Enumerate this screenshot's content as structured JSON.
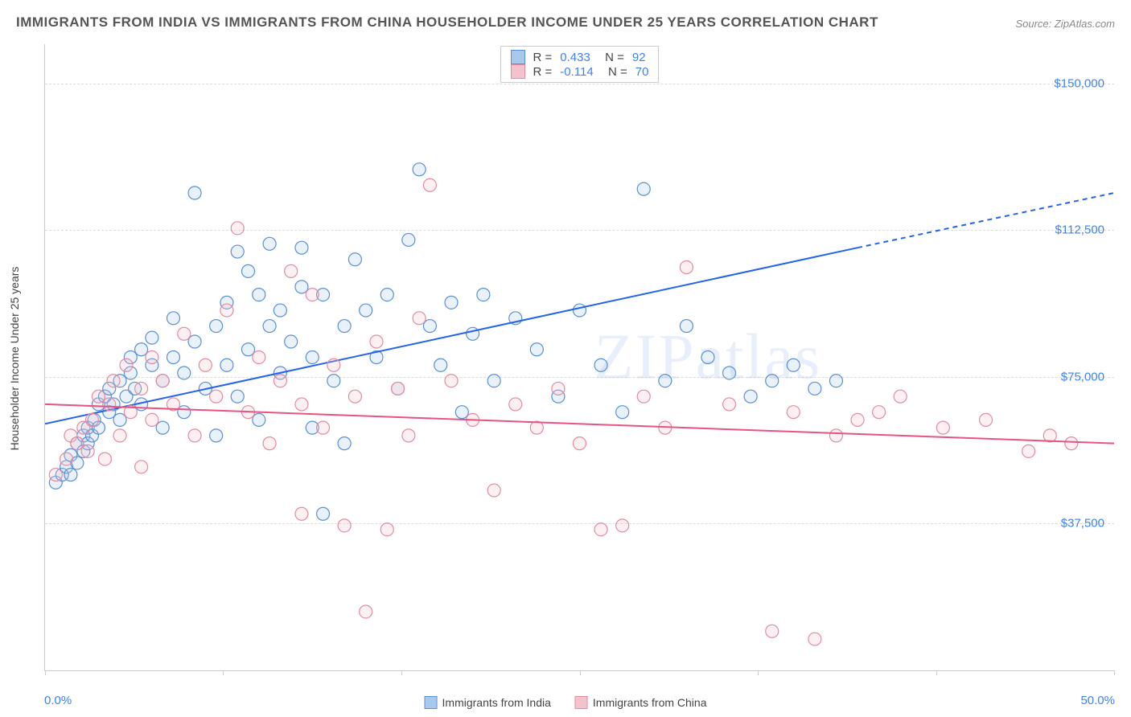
{
  "title": "IMMIGRANTS FROM INDIA VS IMMIGRANTS FROM CHINA HOUSEHOLDER INCOME UNDER 25 YEARS CORRELATION CHART",
  "source": "Source: ZipAtlas.com",
  "watermark": "ZIPatlas",
  "y_axis_label": "Householder Income Under 25 years",
  "chart": {
    "type": "scatter",
    "xlim": [
      0,
      50
    ],
    "ylim": [
      0,
      160000
    ],
    "x_tick_positions": [
      0,
      8.33,
      16.67,
      25,
      33.33,
      41.67,
      50
    ],
    "y_gridlines": [
      37500,
      75000,
      112500,
      150000
    ],
    "y_tick_labels": [
      "$37,500",
      "$75,000",
      "$112,500",
      "$150,000"
    ],
    "x_label_min": "0.0%",
    "x_label_max": "50.0%",
    "background_color": "#ffffff",
    "grid_color": "#dddddd",
    "axis_line_color": "#cccccc",
    "tick_label_color": "#3b82f6",
    "marker_radius": 8,
    "marker_fill_opacity": 0.25,
    "marker_stroke_width": 1.2,
    "line_width": 2
  },
  "series": [
    {
      "name": "Immigrants from India",
      "color_fill": "#a8c8ec",
      "color_stroke": "#5b8fd6",
      "line_color": "#2563eb",
      "r_value": "0.433",
      "n_value": "92",
      "trend_line": {
        "x1": 0,
        "y1": 63000,
        "x2": 38,
        "y2": 108000,
        "x2_ext": 50,
        "y2_ext": 122000
      },
      "points": [
        [
          0.5,
          48000
        ],
        [
          0.8,
          50000
        ],
        [
          1.0,
          52000
        ],
        [
          1.2,
          55000
        ],
        [
          1.2,
          50000
        ],
        [
          1.5,
          58000
        ],
        [
          1.5,
          53000
        ],
        [
          1.8,
          60000
        ],
        [
          1.8,
          56000
        ],
        [
          2.0,
          62000
        ],
        [
          2.0,
          58000
        ],
        [
          2.2,
          60000
        ],
        [
          2.3,
          64000
        ],
        [
          2.5,
          68000
        ],
        [
          2.5,
          62000
        ],
        [
          2.8,
          70000
        ],
        [
          3.0,
          66000
        ],
        [
          3.0,
          72000
        ],
        [
          3.2,
          68000
        ],
        [
          3.5,
          74000
        ],
        [
          3.5,
          64000
        ],
        [
          3.8,
          70000
        ],
        [
          4.0,
          76000
        ],
        [
          4.0,
          80000
        ],
        [
          4.2,
          72000
        ],
        [
          4.5,
          82000
        ],
        [
          4.5,
          68000
        ],
        [
          5.0,
          78000
        ],
        [
          5.0,
          85000
        ],
        [
          5.5,
          74000
        ],
        [
          5.5,
          62000
        ],
        [
          6.0,
          80000
        ],
        [
          6.0,
          90000
        ],
        [
          6.5,
          76000
        ],
        [
          6.5,
          66000
        ],
        [
          7.0,
          122000
        ],
        [
          7.0,
          84000
        ],
        [
          7.5,
          72000
        ],
        [
          8.0,
          88000
        ],
        [
          8.0,
          60000
        ],
        [
          8.5,
          94000
        ],
        [
          8.5,
          78000
        ],
        [
          9.0,
          107000
        ],
        [
          9.0,
          70000
        ],
        [
          9.5,
          82000
        ],
        [
          9.5,
          102000
        ],
        [
          10.0,
          96000
        ],
        [
          10.0,
          64000
        ],
        [
          10.5,
          88000
        ],
        [
          10.5,
          109000
        ],
        [
          11.0,
          76000
        ],
        [
          11.0,
          92000
        ],
        [
          11.5,
          84000
        ],
        [
          12.0,
          98000
        ],
        [
          12.0,
          108000
        ],
        [
          12.5,
          62000
        ],
        [
          12.5,
          80000
        ],
        [
          13.0,
          96000
        ],
        [
          13.0,
          40000
        ],
        [
          13.5,
          74000
        ],
        [
          14.0,
          88000
        ],
        [
          14.0,
          58000
        ],
        [
          14.5,
          105000
        ],
        [
          15.0,
          92000
        ],
        [
          15.5,
          80000
        ],
        [
          16.0,
          96000
        ],
        [
          16.5,
          72000
        ],
        [
          17.0,
          110000
        ],
        [
          17.5,
          128000
        ],
        [
          18.0,
          88000
        ],
        [
          18.5,
          78000
        ],
        [
          19.0,
          94000
        ],
        [
          19.5,
          66000
        ],
        [
          20.0,
          86000
        ],
        [
          20.5,
          96000
        ],
        [
          21.0,
          74000
        ],
        [
          22.0,
          90000
        ],
        [
          23.0,
          82000
        ],
        [
          24.0,
          70000
        ],
        [
          25.0,
          92000
        ],
        [
          26.0,
          78000
        ],
        [
          27.0,
          66000
        ],
        [
          28.0,
          123000
        ],
        [
          29.0,
          74000
        ],
        [
          30.0,
          88000
        ],
        [
          31.0,
          80000
        ],
        [
          32.0,
          76000
        ],
        [
          33.0,
          70000
        ],
        [
          34.0,
          74000
        ],
        [
          35.0,
          78000
        ],
        [
          36.0,
          72000
        ],
        [
          37.0,
          74000
        ]
      ]
    },
    {
      "name": "Immigrants from China",
      "color_fill": "#f4c2cd",
      "color_stroke": "#e38ba0",
      "line_color": "#e75480",
      "r_value": "-0.114",
      "n_value": "70",
      "trend_line": {
        "x1": 0,
        "y1": 68000,
        "x2": 50,
        "y2": 58000
      },
      "points": [
        [
          0.5,
          50000
        ],
        [
          1.0,
          54000
        ],
        [
          1.2,
          60000
        ],
        [
          1.5,
          58000
        ],
        [
          1.8,
          62000
        ],
        [
          2.0,
          56000
        ],
        [
          2.2,
          64000
        ],
        [
          2.5,
          70000
        ],
        [
          2.8,
          54000
        ],
        [
          3.0,
          68000
        ],
        [
          3.2,
          74000
        ],
        [
          3.5,
          60000
        ],
        [
          3.8,
          78000
        ],
        [
          4.0,
          66000
        ],
        [
          4.5,
          72000
        ],
        [
          4.5,
          52000
        ],
        [
          5.0,
          80000
        ],
        [
          5.0,
          64000
        ],
        [
          5.5,
          74000
        ],
        [
          6.0,
          68000
        ],
        [
          6.5,
          86000
        ],
        [
          7.0,
          60000
        ],
        [
          7.5,
          78000
        ],
        [
          8.0,
          70000
        ],
        [
          8.5,
          92000
        ],
        [
          9.0,
          113000
        ],
        [
          9.5,
          66000
        ],
        [
          10.0,
          80000
        ],
        [
          10.5,
          58000
        ],
        [
          11.0,
          74000
        ],
        [
          11.5,
          102000
        ],
        [
          12.0,
          68000
        ],
        [
          12.0,
          40000
        ],
        [
          12.5,
          96000
        ],
        [
          13.0,
          62000
        ],
        [
          13.5,
          78000
        ],
        [
          14.0,
          37000
        ],
        [
          14.5,
          70000
        ],
        [
          15.0,
          15000
        ],
        [
          15.5,
          84000
        ],
        [
          16.0,
          36000
        ],
        [
          16.5,
          72000
        ],
        [
          17.0,
          60000
        ],
        [
          17.5,
          90000
        ],
        [
          18.0,
          124000
        ],
        [
          19.0,
          74000
        ],
        [
          20.0,
          64000
        ],
        [
          21.0,
          46000
        ],
        [
          22.0,
          68000
        ],
        [
          23.0,
          62000
        ],
        [
          24.0,
          72000
        ],
        [
          25.0,
          58000
        ],
        [
          26.0,
          36000
        ],
        [
          27.0,
          37000
        ],
        [
          28.0,
          70000
        ],
        [
          29.0,
          62000
        ],
        [
          30.0,
          103000
        ],
        [
          32.0,
          68000
        ],
        [
          34.0,
          10000
        ],
        [
          35.0,
          66000
        ],
        [
          36.0,
          8000
        ],
        [
          37.0,
          60000
        ],
        [
          38.0,
          64000
        ],
        [
          39.0,
          66000
        ],
        [
          40.0,
          70000
        ],
        [
          42.0,
          62000
        ],
        [
          44.0,
          64000
        ],
        [
          46.0,
          56000
        ],
        [
          47.0,
          60000
        ],
        [
          48.0,
          58000
        ]
      ]
    }
  ],
  "bottom_legend": [
    {
      "label": "Immigrants from India",
      "fill": "#a8c8ec",
      "stroke": "#5b8fd6"
    },
    {
      "label": "Immigrants from China",
      "fill": "#f4c2cd",
      "stroke": "#e38ba0"
    }
  ]
}
